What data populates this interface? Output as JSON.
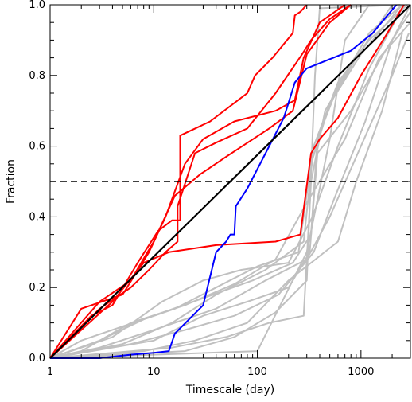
{
  "chart_data": {
    "type": "line",
    "title": "",
    "xlabel": "Timescale (day)",
    "ylabel": "Fraction",
    "xscale": "log",
    "xlim": [
      1,
      3000
    ],
    "ylim": [
      0,
      1
    ],
    "xticks": [
      {
        "value": 1,
        "label": "1"
      },
      {
        "value": 10,
        "label": "10"
      },
      {
        "value": 100,
        "label": "100"
      },
      {
        "value": 1000,
        "label": "1000"
      }
    ],
    "yticks": [
      {
        "value": 0,
        "label": "0.0"
      },
      {
        "value": 0.2,
        "label": "0.2"
      },
      {
        "value": 0.4,
        "label": "0.4"
      },
      {
        "value": 0.6,
        "label": "0.6"
      },
      {
        "value": 0.8,
        "label": "0.8"
      },
      {
        "value": 1,
        "label": "1.0"
      }
    ],
    "grid": false,
    "legend": "none",
    "reference_lines": [
      {
        "kind": "diagonal",
        "from": [
          1,
          0
        ],
        "to": [
          3000,
          1
        ],
        "color": "#000000",
        "style": "solid"
      },
      {
        "kind": "horizontal",
        "y": 0.5,
        "color": "#000000",
        "style": "dashed"
      }
    ],
    "series": [
      {
        "color": "#c0c0c0",
        "points": [
          [
            1,
            0
          ],
          [
            3,
            0.05
          ],
          [
            8,
            0.11
          ],
          [
            16,
            0.14
          ],
          [
            40,
            0.2
          ],
          [
            100,
            0.26
          ],
          [
            250,
            0.3
          ],
          [
            330,
            0.55
          ],
          [
            500,
            0.72
          ],
          [
            1000,
            0.86
          ],
          [
            2500,
            1
          ]
        ]
      },
      {
        "color": "#c0c0c0",
        "points": [
          [
            1,
            0
          ],
          [
            5,
            0.04
          ],
          [
            15,
            0.1
          ],
          [
            40,
            0.18
          ],
          [
            120,
            0.25
          ],
          [
            280,
            0.33
          ],
          [
            350,
            0.6
          ],
          [
            600,
            0.78
          ],
          [
            1200,
            0.9
          ],
          [
            2800,
            1
          ]
        ]
      },
      {
        "color": "#c0c0c0",
        "points": [
          [
            1,
            0
          ],
          [
            2,
            0.02
          ],
          [
            6,
            0.1
          ],
          [
            20,
            0.15
          ],
          [
            60,
            0.21
          ],
          [
            150,
            0.28
          ],
          [
            300,
            0.44
          ],
          [
            700,
            0.62
          ],
          [
            1500,
            0.85
          ],
          [
            3000,
            0.95
          ]
        ]
      },
      {
        "color": "#c0c0c0",
        "points": [
          [
            1,
            0
          ],
          [
            10,
            0.05
          ],
          [
            30,
            0.12
          ],
          [
            80,
            0.16
          ],
          [
            200,
            0.2
          ],
          [
            320,
            0.3
          ],
          [
            380,
            0.58
          ],
          [
            800,
            0.7
          ],
          [
            1800,
            0.88
          ],
          [
            3000,
            0.98
          ]
        ]
      },
      {
        "color": "#c0c0c0",
        "points": [
          [
            1,
            0
          ],
          [
            4,
            0.06
          ],
          [
            12,
            0.16
          ],
          [
            30,
            0.22
          ],
          [
            70,
            0.25
          ],
          [
            200,
            0.27
          ],
          [
            340,
            0.4
          ],
          [
            600,
            0.6
          ],
          [
            1200,
            0.82
          ],
          [
            2600,
            1
          ]
        ]
      },
      {
        "color": "#c0c0c0",
        "points": [
          [
            1,
            0
          ],
          [
            20,
            0.02
          ],
          [
            60,
            0.06
          ],
          [
            150,
            0.13
          ],
          [
            300,
            0.22
          ],
          [
            360,
            0.8
          ],
          [
            400,
            0.99
          ],
          [
            2400,
            1
          ]
        ]
      },
      {
        "color": "#c0c0c0",
        "points": [
          [
            1,
            0
          ],
          [
            8,
            0.02
          ],
          [
            25,
            0.05
          ],
          [
            80,
            0.1
          ],
          [
            200,
            0.22
          ],
          [
            330,
            0.27
          ],
          [
            600,
            0.33
          ],
          [
            900,
            0.5
          ],
          [
            1600,
            0.7
          ],
          [
            2500,
            0.92
          ]
        ]
      },
      {
        "color": "#c0c0c0",
        "points": [
          [
            1,
            0
          ],
          [
            3,
            0.03
          ],
          [
            10,
            0.08
          ],
          [
            40,
            0.14
          ],
          [
            120,
            0.22
          ],
          [
            300,
            0.28
          ],
          [
            500,
            0.4
          ],
          [
            1000,
            0.6
          ],
          [
            2000,
            0.8
          ],
          [
            2900,
            0.92
          ]
        ]
      },
      {
        "color": "#c0c0c0",
        "points": [
          [
            1,
            0
          ],
          [
            15,
            0.03
          ],
          [
            50,
            0.06
          ],
          [
            130,
            0.1
          ],
          [
            280,
            0.12
          ],
          [
            330,
            0.5
          ],
          [
            450,
            0.7
          ],
          [
            900,
            0.85
          ],
          [
            2000,
            1
          ]
        ]
      },
      {
        "color": "#c0c0c0",
        "points": [
          [
            1,
            0
          ],
          [
            6,
            0.04
          ],
          [
            20,
            0.08
          ],
          [
            60,
            0.12
          ],
          [
            160,
            0.18
          ],
          [
            350,
            0.3
          ],
          [
            550,
            0.45
          ],
          [
            1100,
            0.67
          ],
          [
            2000,
            0.9
          ],
          [
            3000,
            1
          ]
        ]
      },
      {
        "color": "#c0c0c0",
        "points": [
          [
            1,
            0
          ],
          [
            100,
            0.02
          ],
          [
            300,
            0.3
          ],
          [
            500,
            0.62
          ],
          [
            700,
            0.9
          ],
          [
            1200,
            1
          ]
        ]
      },
      {
        "color": "#c0c0c0",
        "points": [
          [
            1,
            0
          ],
          [
            2,
            0.05
          ],
          [
            10,
            0.12
          ],
          [
            30,
            0.17
          ],
          [
            90,
            0.22
          ],
          [
            220,
            0.27
          ],
          [
            330,
            0.35
          ],
          [
            380,
            0.62
          ],
          [
            600,
            0.77
          ],
          [
            1200,
            0.92
          ],
          [
            2500,
            1
          ]
        ]
      },
      {
        "color": "#ff0000",
        "points": [
          [
            1,
            0
          ],
          [
            2,
            0.14
          ],
          [
            5,
            0.18
          ],
          [
            9,
            0.3
          ],
          [
            13,
            0.4
          ],
          [
            20,
            0.55
          ],
          [
            30,
            0.62
          ],
          [
            60,
            0.67
          ],
          [
            150,
            0.7
          ],
          [
            230,
            0.73
          ],
          [
            280,
            0.85
          ],
          [
            400,
            0.95
          ],
          [
            700,
            1
          ]
        ]
      },
      {
        "color": "#ff0000",
        "points": [
          [
            1,
            0
          ],
          [
            3,
            0.16
          ],
          [
            6,
            0.22
          ],
          [
            10,
            0.33
          ],
          [
            16,
            0.46
          ],
          [
            28,
            0.52
          ],
          [
            50,
            0.57
          ],
          [
            130,
            0.65
          ],
          [
            220,
            0.7
          ],
          [
            300,
            0.86
          ],
          [
            500,
            0.95
          ],
          [
            800,
            1
          ]
        ]
      },
      {
        "color": "#ff0000",
        "points": [
          [
            1,
            0
          ],
          [
            2.5,
            0.12
          ],
          [
            4,
            0.15
          ],
          [
            7,
            0.27
          ],
          [
            11,
            0.36
          ],
          [
            15,
            0.39
          ],
          [
            18,
            0.39
          ],
          [
            18,
            0.63
          ],
          [
            35,
            0.67
          ],
          [
            80,
            0.75
          ],
          [
            95,
            0.8
          ],
          [
            140,
            0.85
          ],
          [
            220,
            0.92
          ],
          [
            230,
            0.97
          ],
          [
            260,
            0.98
          ],
          [
            300,
            1
          ]
        ]
      },
      {
        "color": "#ff0000",
        "points": [
          [
            1,
            0
          ],
          [
            3,
            0.14
          ],
          [
            6,
            0.2
          ],
          [
            9,
            0.25
          ],
          [
            13,
            0.3
          ],
          [
            17,
            0.33
          ],
          [
            17,
            0.43
          ],
          [
            25,
            0.58
          ],
          [
            40,
            0.61
          ],
          [
            80,
            0.65
          ],
          [
            150,
            0.75
          ],
          [
            270,
            0.86
          ],
          [
            330,
            0.9
          ],
          [
            500,
            0.96
          ],
          [
            800,
            1
          ]
        ]
      },
      {
        "color": "#ff0000",
        "points": [
          [
            1,
            0
          ],
          [
            4,
            0.16
          ],
          [
            8,
            0.27
          ],
          [
            14,
            0.3
          ],
          [
            40,
            0.32
          ],
          [
            150,
            0.33
          ],
          [
            260,
            0.35
          ],
          [
            330,
            0.58
          ],
          [
            400,
            0.62
          ],
          [
            600,
            0.68
          ],
          [
            1000,
            0.8
          ],
          [
            1800,
            0.92
          ],
          [
            2600,
            1
          ]
        ]
      },
      {
        "color": "#0000ff",
        "points": [
          [
            1,
            0
          ],
          [
            3,
            0
          ],
          [
            6,
            0.01
          ],
          [
            10,
            0.015
          ],
          [
            14,
            0.02
          ],
          [
            16,
            0.07
          ],
          [
            30,
            0.15
          ],
          [
            40,
            0.3
          ],
          [
            50,
            0.33
          ],
          [
            55,
            0.35
          ],
          [
            60,
            0.35
          ],
          [
            62,
            0.43
          ],
          [
            80,
            0.48
          ],
          [
            120,
            0.58
          ],
          [
            180,
            0.68
          ],
          [
            230,
            0.78
          ],
          [
            300,
            0.82
          ],
          [
            800,
            0.87
          ],
          [
            1300,
            0.92
          ],
          [
            1800,
            0.97
          ],
          [
            2200,
            1
          ]
        ]
      }
    ]
  }
}
